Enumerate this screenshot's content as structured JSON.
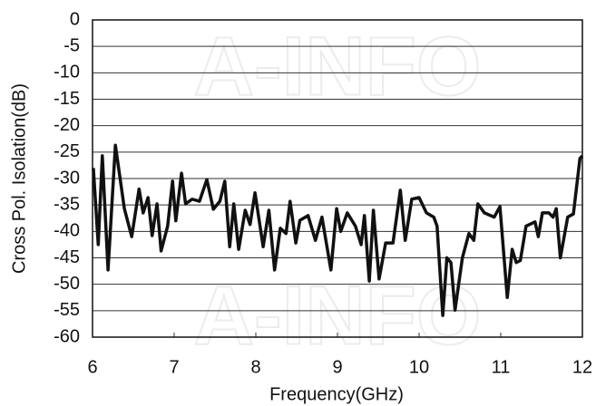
{
  "chart_data": {
    "type": "line",
    "xlabel": "Frequency(GHz)",
    "ylabel": "Cross Pol. Isolation(dB)",
    "watermark": "A-INFO",
    "xlim": [
      6,
      12
    ],
    "xticks": [
      6,
      7,
      8,
      9,
      10,
      11,
      12
    ],
    "ylim": [
      -60,
      0
    ],
    "yticks": [
      -60,
      -55,
      -50,
      -45,
      -40,
      -35,
      -30,
      -25,
      -20,
      -15,
      -10,
      -5,
      0
    ],
    "grid": true,
    "color": "#111111",
    "x": [
      6.01,
      6.07,
      6.12,
      6.19,
      6.28,
      6.39,
      6.48,
      6.57,
      6.62,
      6.68,
      6.73,
      6.79,
      6.84,
      6.92,
      6.98,
      7.02,
      7.09,
      7.14,
      7.22,
      7.31,
      7.4,
      7.48,
      7.56,
      7.62,
      7.68,
      7.73,
      7.79,
      7.87,
      7.93,
      7.99,
      8.09,
      8.16,
      8.23,
      8.3,
      8.37,
      8.42,
      8.49,
      8.54,
      8.64,
      8.73,
      8.81,
      8.92,
      8.99,
      9.04,
      9.12,
      9.22,
      9.29,
      9.33,
      9.39,
      9.44,
      9.51,
      9.59,
      9.68,
      9.77,
      9.83,
      9.91,
      10,
      10.09,
      10.18,
      10.22,
      10.29,
      10.34,
      10.39,
      10.44,
      10.53,
      10.61,
      10.67,
      10.72,
      10.8,
      10.92,
      10.99,
      11.08,
      11.14,
      11.19,
      11.24,
      11.31,
      11.42,
      11.46,
      11.51,
      11.59,
      11.64,
      11.68,
      11.73,
      11.82,
      11.89,
      11.97,
      12
    ],
    "values": [
      -28,
      -42.5,
      -25.7,
      -47.3,
      -23.7,
      -35.7,
      -41,
      -32,
      -36.5,
      -33.6,
      -40.8,
      -34.8,
      -43.7,
      -39,
      -30.5,
      -38,
      -29,
      -34.8,
      -33.9,
      -34.3,
      -30.2,
      -35.8,
      -34.3,
      -30.5,
      -42.9,
      -34.8,
      -43.4,
      -36,
      -38.7,
      -32.7,
      -42.9,
      -36,
      -47.3,
      -39.4,
      -40.4,
      -34.3,
      -42.2,
      -37.9,
      -37,
      -41.7,
      -37.3,
      -47.3,
      -35.7,
      -40,
      -36.5,
      -39,
      -42.5,
      -37,
      -49.4,
      -36,
      -49,
      -42.2,
      -42.2,
      -32.2,
      -41.7,
      -33.9,
      -33.6,
      -36.5,
      -37.3,
      -39,
      -55.9,
      -45,
      -45.9,
      -54.9,
      -45,
      -40.4,
      -41.7,
      -34.8,
      -36.5,
      -37.3,
      -35.3,
      -52.5,
      -43.4,
      -45.9,
      -45.5,
      -39,
      -38.2,
      -41,
      -36.5,
      -36.5,
      -37.3,
      -35.7,
      -45,
      -37.3,
      -36.7,
      -26.2,
      -25.7
    ]
  }
}
